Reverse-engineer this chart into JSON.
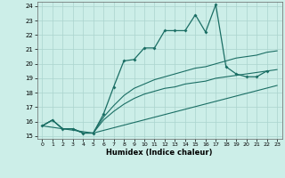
{
  "title": "",
  "xlabel": "Humidex (Indice chaleur)",
  "bg_color": "#cceee8",
  "grid_color": "#aad4ce",
  "line_color": "#1a6e64",
  "xlim": [
    -0.5,
    23.5
  ],
  "ylim": [
    14.8,
    24.3
  ],
  "yticks": [
    15,
    16,
    17,
    18,
    19,
    20,
    21,
    22,
    23,
    24
  ],
  "xticks": [
    0,
    1,
    2,
    3,
    4,
    5,
    6,
    7,
    8,
    9,
    10,
    11,
    12,
    13,
    14,
    15,
    16,
    17,
    18,
    19,
    20,
    21,
    22,
    23
  ],
  "line1_x": [
    0,
    1,
    2,
    3,
    4,
    5,
    6,
    7,
    8,
    9,
    10,
    11,
    12,
    13,
    14,
    15,
    16,
    17,
    18,
    19,
    20,
    21,
    22
  ],
  "line1_y": [
    15.7,
    16.1,
    15.5,
    15.5,
    15.2,
    15.2,
    16.5,
    18.4,
    20.2,
    20.3,
    21.1,
    21.1,
    22.3,
    22.3,
    22.3,
    23.4,
    22.2,
    24.1,
    19.8,
    19.3,
    19.1,
    19.1,
    19.5
  ],
  "line2_x": [
    0,
    1,
    2,
    3,
    4,
    5,
    6,
    7,
    8,
    9,
    10,
    11,
    12,
    13,
    14,
    15,
    16,
    17,
    18,
    19,
    20,
    21,
    22,
    23
  ],
  "line2_y": [
    15.7,
    16.1,
    15.5,
    15.5,
    15.2,
    15.2,
    16.3,
    17.1,
    17.8,
    18.3,
    18.6,
    18.9,
    19.1,
    19.3,
    19.5,
    19.7,
    19.8,
    20.0,
    20.2,
    20.4,
    20.5,
    20.6,
    20.8,
    20.9
  ],
  "line3_x": [
    0,
    1,
    2,
    3,
    4,
    5,
    6,
    7,
    8,
    9,
    10,
    11,
    12,
    13,
    14,
    15,
    16,
    17,
    18,
    19,
    20,
    21,
    22,
    23
  ],
  "line3_y": [
    15.7,
    16.1,
    15.5,
    15.5,
    15.2,
    15.2,
    16.1,
    16.7,
    17.2,
    17.6,
    17.9,
    18.1,
    18.3,
    18.4,
    18.6,
    18.7,
    18.8,
    19.0,
    19.1,
    19.2,
    19.3,
    19.4,
    19.5,
    19.6
  ],
  "line4_x": [
    0,
    5,
    23
  ],
  "line4_y": [
    15.7,
    15.2,
    18.5
  ]
}
